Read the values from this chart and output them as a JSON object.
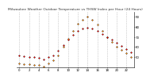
{
  "title": "Milwaukee Weather Outdoor Temperature vs THSW Index per Hour (24 Hours)",
  "background_color": "#ffffff",
  "grid_color": "#aaaaaa",
  "hours": [
    0,
    1,
    2,
    3,
    4,
    5,
    6,
    7,
    8,
    9,
    10,
    11,
    12,
    13,
    14,
    15,
    16,
    17,
    18,
    19,
    20,
    21,
    22,
    23
  ],
  "temp_values": [
    52,
    51,
    50,
    50,
    49,
    48,
    50,
    52,
    56,
    62,
    67,
    72,
    76,
    78,
    79,
    78,
    76,
    73,
    70,
    67,
    64,
    61,
    58,
    55
  ],
  "thsw_values": [
    44,
    43,
    43,
    42,
    42,
    41,
    44,
    47,
    52,
    60,
    68,
    76,
    83,
    87,
    90,
    87,
    82,
    76,
    70,
    65,
    60,
    57,
    54,
    50
  ],
  "temp_color": "#ff0000",
  "thsw_color": "#ff8800",
  "black_color": "#000000",
  "marker_size": 1.2,
  "ylim": [
    40,
    95
  ],
  "ytick_values": [
    50,
    60,
    70,
    80,
    90
  ],
  "ytick_labels": [
    "50",
    "60",
    "70",
    "80",
    "90"
  ],
  "xtick_values": [
    0,
    2,
    4,
    6,
    8,
    10,
    12,
    14,
    16,
    18,
    20,
    22
  ],
  "xtick_labels": [
    "0",
    "2",
    "4",
    "6",
    "8",
    "10",
    "12",
    "14",
    "16",
    "18",
    "20",
    "22"
  ],
  "title_fontsize": 3.2,
  "tick_fontsize": 2.8,
  "grid_linewidth": 0.4
}
